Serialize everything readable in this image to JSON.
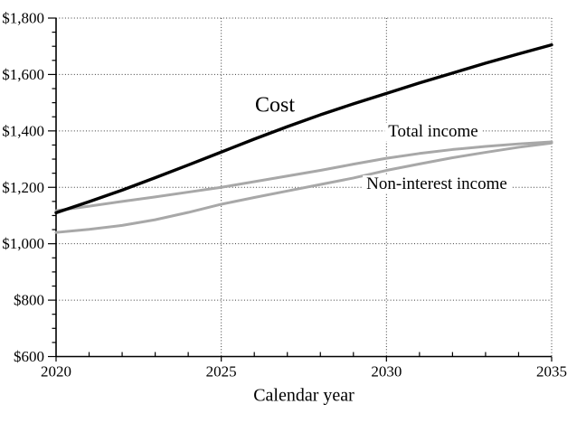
{
  "chart_data": {
    "type": "line",
    "title": "",
    "xlabel": "Calendar year",
    "ylabel": "",
    "x_start": 2020,
    "x_end": 2035,
    "x_major_interval": 5,
    "x_minor_interval": 1,
    "x_tick_labels": [
      "2020",
      "2025",
      "2030",
      "2035"
    ],
    "ylim": [
      600,
      1800
    ],
    "y_major_interval": 200,
    "y_minor_interval": 50,
    "y_tick_labels": [
      "$600",
      "$800",
      "$1,000",
      "$1,200",
      "$1,400",
      "$1,600",
      "$1,800"
    ],
    "grid": "dotted horizontal at $200 steps, dotted vertical at 5-year steps",
    "legend_position": "inline-labels",
    "years": [
      2020,
      2021,
      2022,
      2023,
      2024,
      2025,
      2026,
      2027,
      2028,
      2029,
      2030,
      2031,
      2032,
      2033,
      2034,
      2035
    ],
    "series": [
      {
        "name": "Non-interest income",
        "color": "#a8a8a8",
        "width": 3,
        "values": [
          1040,
          1051,
          1065,
          1085,
          1111,
          1140,
          1164,
          1187,
          1210,
          1233,
          1260,
          1283,
          1305,
          1324,
          1342,
          1357
        ]
      },
      {
        "name": "Total income",
        "color": "#a8a8a8",
        "width": 3,
        "values": [
          1117,
          1133,
          1150,
          1166,
          1183,
          1200,
          1220,
          1240,
          1260,
          1282,
          1303,
          1320,
          1334,
          1345,
          1354,
          1361
        ]
      },
      {
        "name": "Cost",
        "color": "#000000",
        "width": 3.4,
        "values": [
          1110,
          1149,
          1190,
          1234,
          1279,
          1325,
          1371,
          1415,
          1457,
          1496,
          1533,
          1570,
          1605,
          1640,
          1673,
          1705
        ]
      }
    ],
    "labels": {
      "cost": "Cost",
      "total_income": "Total income",
      "non_interest_income": "Non-interest income"
    }
  },
  "colors": {
    "background": "#ffffff",
    "axis": "#000000",
    "grid": "#3a3a3a",
    "gray_series": "#a8a8a8",
    "black_series": "#000000",
    "text": "#000000"
  }
}
